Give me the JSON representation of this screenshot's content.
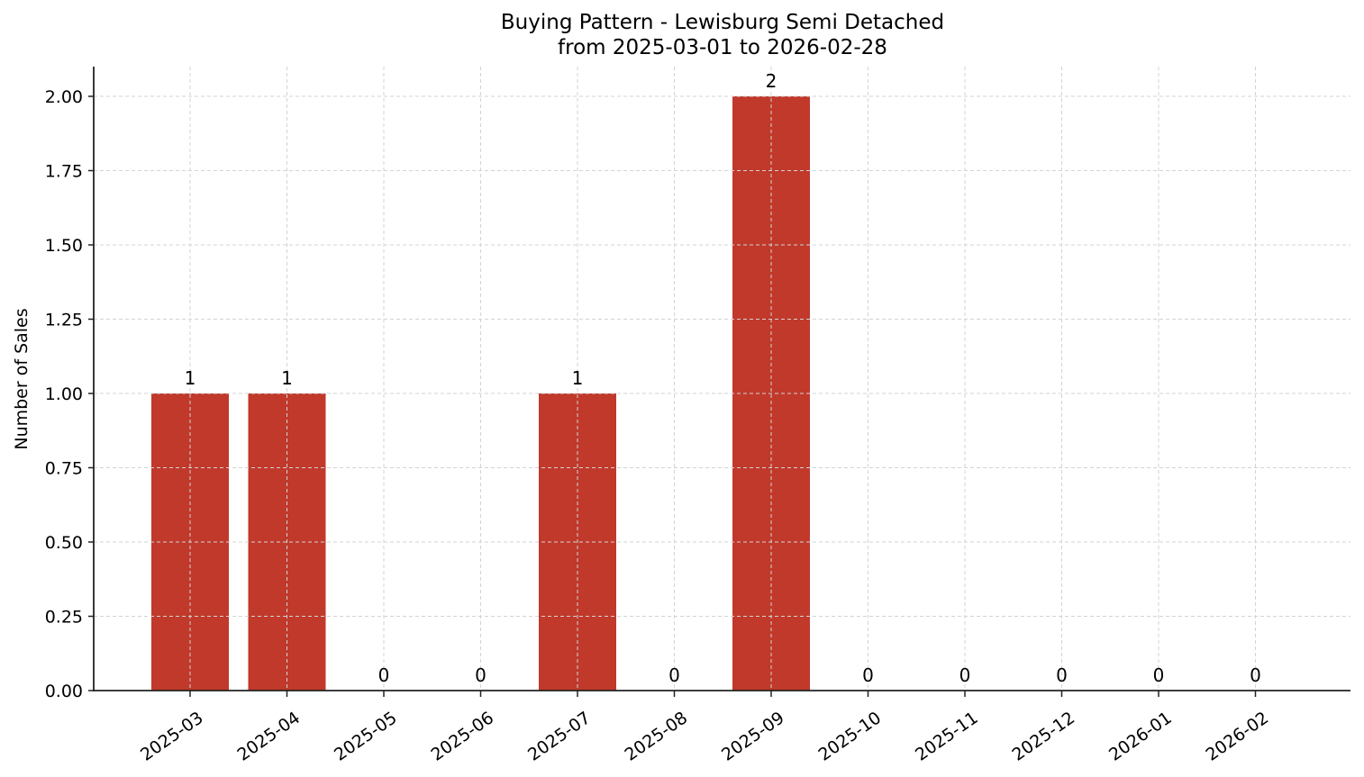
{
  "chart_data": {
    "type": "bar",
    "title": "Buying Pattern - Lewisburg Semi Detached",
    "subtitle": "from 2025-03-01 to 2026-02-28",
    "xlabel": "",
    "ylabel": "Number of Sales",
    "categories": [
      "2025-03",
      "2025-04",
      "2025-05",
      "2025-06",
      "2025-07",
      "2025-08",
      "2025-09",
      "2025-10",
      "2025-11",
      "2025-12",
      "2026-01",
      "2026-02"
    ],
    "values": [
      1,
      1,
      0,
      0,
      1,
      0,
      2,
      0,
      0,
      0,
      0,
      0
    ],
    "data_labels": [
      "1",
      "1",
      "0",
      "0",
      "1",
      "0",
      "2",
      "0",
      "0",
      "0",
      "0",
      "0"
    ],
    "ylim": [
      0,
      2.1
    ],
    "yticks": [
      "0.00",
      "0.25",
      "0.50",
      "0.75",
      "1.00",
      "1.25",
      "1.50",
      "1.75",
      "2.00"
    ],
    "grid": true,
    "legend": null,
    "bar_color": "#c0392b"
  }
}
